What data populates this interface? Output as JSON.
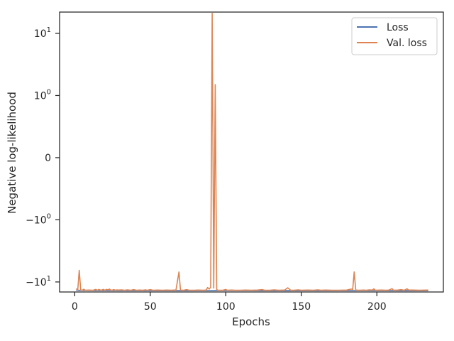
{
  "chart_data": {
    "type": "line",
    "title": "",
    "xlabel": "Epochs",
    "ylabel": "Negative log-likelihood",
    "xlim": [
      -10,
      244
    ],
    "ylim": [
      -14.5,
      22
    ],
    "yscale": "symlog",
    "x_ticks": [
      0,
      50,
      100,
      150,
      200,
      250
    ],
    "x_tick_labels": [
      "0",
      "50",
      "100",
      "150",
      "200",
      ""
    ],
    "y_ticks": [
      10,
      1,
      0,
      -1,
      -10
    ],
    "y_tick_labels": [
      {
        "base": "10",
        "exp": "1"
      },
      {
        "base": "10",
        "exp": "0"
      },
      {
        "base": "0",
        "exp": ""
      },
      {
        "base": "−10",
        "exp": "0"
      },
      {
        "base": "−10",
        "exp": "1"
      }
    ],
    "legend_position": "top-right",
    "grid": false,
    "series": [
      {
        "name": "Loss",
        "color": "#4c72b0",
        "points": [
          [
            1,
            -13.6
          ],
          [
            10,
            -13.7
          ],
          [
            30,
            -13.75
          ],
          [
            60,
            -13.8
          ],
          [
            90,
            -13.75
          ],
          [
            100,
            -13.7
          ],
          [
            130,
            -13.8
          ],
          [
            160,
            -13.8
          ],
          [
            190,
            -13.75
          ],
          [
            220,
            -13.8
          ],
          [
            234,
            -13.8
          ]
        ]
      },
      {
        "name": "Val. loss",
        "color": "#dd8452",
        "points": [
          [
            1,
            -12.8
          ],
          [
            2,
            -13.5
          ],
          [
            3,
            -6.5
          ],
          [
            4,
            -13.4
          ],
          [
            5,
            -13.6
          ],
          [
            6,
            -13.1
          ],
          [
            7,
            -13.6
          ],
          [
            9,
            -13.5
          ],
          [
            12,
            -13.6
          ],
          [
            14,
            -13.2
          ],
          [
            15,
            -13.6
          ],
          [
            16,
            -13.2
          ],
          [
            17,
            -13.5
          ],
          [
            18,
            -13.5
          ],
          [
            19,
            -13.2
          ],
          [
            20,
            -13.6
          ],
          [
            21,
            -13.2
          ],
          [
            22,
            -13.4
          ],
          [
            23,
            -13.0
          ],
          [
            24,
            -13.6
          ],
          [
            25,
            -13.5
          ],
          [
            26,
            -13.3
          ],
          [
            27,
            -13.6
          ],
          [
            28,
            -13.4
          ],
          [
            29,
            -13.5
          ],
          [
            31,
            -13.4
          ],
          [
            33,
            -13.6
          ],
          [
            35,
            -13.4
          ],
          [
            37,
            -13.6
          ],
          [
            39,
            -13.3
          ],
          [
            41,
            -13.6
          ],
          [
            43,
            -13.5
          ],
          [
            45,
            -13.6
          ],
          [
            47,
            -13.4
          ],
          [
            48,
            -13.6
          ],
          [
            50,
            -13.3
          ],
          [
            52,
            -13.6
          ],
          [
            55,
            -13.5
          ],
          [
            58,
            -13.6
          ],
          [
            61,
            -13.5
          ],
          [
            64,
            -13.6
          ],
          [
            66,
            -13.5
          ],
          [
            67,
            -13.6
          ],
          [
            69,
            -6.9
          ],
          [
            70,
            -13.5
          ],
          [
            72,
            -13.6
          ],
          [
            74,
            -13.3
          ],
          [
            76,
            -13.6
          ],
          [
            79,
            -13.6
          ],
          [
            82,
            -13.5
          ],
          [
            85,
            -13.6
          ],
          [
            87,
            -13.5
          ],
          [
            88,
            -12.3
          ],
          [
            89,
            -13.0
          ],
          [
            90,
            -12.2
          ],
          [
            91,
            21.0
          ],
          [
            92,
            -12.5
          ],
          [
            93,
            1.5
          ],
          [
            94,
            -13.3
          ],
          [
            95,
            -13.6
          ],
          [
            98,
            -13.6
          ],
          [
            100,
            -13.2
          ],
          [
            101,
            -13.6
          ],
          [
            104,
            -13.5
          ],
          [
            106,
            -13.6
          ],
          [
            110,
            -13.6
          ],
          [
            113,
            -13.5
          ],
          [
            117,
            -13.6
          ],
          [
            121,
            -13.5
          ],
          [
            124,
            -13.3
          ],
          [
            126,
            -13.6
          ],
          [
            129,
            -13.6
          ],
          [
            132,
            -13.4
          ],
          [
            135,
            -13.6
          ],
          [
            139,
            -13.5
          ],
          [
            141,
            -12.4
          ],
          [
            143,
            -13.6
          ],
          [
            145,
            -13.6
          ],
          [
            148,
            -13.4
          ],
          [
            150,
            -13.6
          ],
          [
            154,
            -13.5
          ],
          [
            158,
            -13.6
          ],
          [
            161,
            -13.4
          ],
          [
            163,
            -13.6
          ],
          [
            166,
            -13.5
          ],
          [
            170,
            -13.6
          ],
          [
            175,
            -13.6
          ],
          [
            180,
            -13.5
          ],
          [
            183,
            -13.0
          ],
          [
            184,
            -13.2
          ],
          [
            185,
            -6.9
          ],
          [
            186,
            -13.5
          ],
          [
            188,
            -13.6
          ],
          [
            191,
            -13.5
          ],
          [
            193,
            -13.6
          ],
          [
            195,
            -13.4
          ],
          [
            197,
            -13.5
          ],
          [
            198,
            -12.9
          ],
          [
            199,
            -13.6
          ],
          [
            203,
            -13.5
          ],
          [
            206,
            -13.6
          ],
          [
            208,
            -13.5
          ],
          [
            210,
            -12.8
          ],
          [
            211,
            -13.6
          ],
          [
            214,
            -13.5
          ],
          [
            216,
            -13.3
          ],
          [
            218,
            -13.6
          ],
          [
            220,
            -12.9
          ],
          [
            221,
            -13.5
          ],
          [
            224,
            -13.5
          ],
          [
            228,
            -13.6
          ],
          [
            234,
            -13.5
          ]
        ]
      }
    ]
  }
}
